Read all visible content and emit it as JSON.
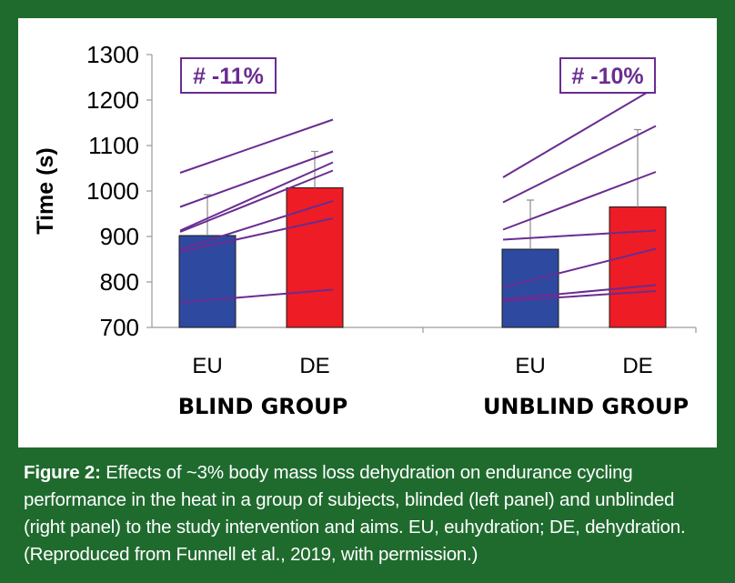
{
  "colors": {
    "frame": "#1f6b2e",
    "panel": "#ffffff",
    "eu_bar": "#2e4aa0",
    "de_bar": "#ee1c24",
    "subject_line": "#6a2c91",
    "annotation": "#6a2c91"
  },
  "chart_data": {
    "type": "bar",
    "title": "",
    "ylabel": "Time (s)",
    "xlabel": "",
    "ylim": [
      700,
      1300
    ],
    "yticks": [
      "1300",
      "1200",
      "1100",
      "1000",
      "900",
      "800",
      "700"
    ],
    "ytick_values": [
      1300,
      1200,
      1100,
      1000,
      900,
      800,
      700
    ],
    "groups": [
      {
        "name": "BLIND GROUP",
        "annotation": "# -11%",
        "categories": [
          "EU",
          "DE"
        ],
        "means": [
          902,
          1007
        ],
        "errors": [
          90,
          80
        ],
        "subjects": [
          [
            1040,
            1157
          ],
          [
            965,
            1087
          ],
          [
            913,
            1063
          ],
          [
            910,
            1045
          ],
          [
            872,
            978
          ],
          [
            866,
            940
          ],
          [
            755,
            783
          ]
        ]
      },
      {
        "name": "UNBLIND GROUP",
        "annotation": "# -10%",
        "categories": [
          "EU",
          "DE"
        ],
        "means": [
          872,
          965
        ],
        "errors": [
          108,
          170
        ],
        "subjects": [
          [
            1030,
            1228
          ],
          [
            975,
            1143
          ],
          [
            915,
            1042
          ],
          [
            893,
            913
          ],
          [
            788,
            873
          ],
          [
            762,
            793
          ],
          [
            758,
            780
          ]
        ]
      }
    ]
  },
  "caption": {
    "label": "Figure 2:",
    "text": " Effects of ~3% body mass loss dehydration on endurance cycling performance in the heat in a group of subjects, blinded (left panel) and unblinded (right panel) to the study intervention and aims. EU, euhydration; DE, dehydration. (Reproduced from Funnell et al., 2019, with permission.)"
  }
}
